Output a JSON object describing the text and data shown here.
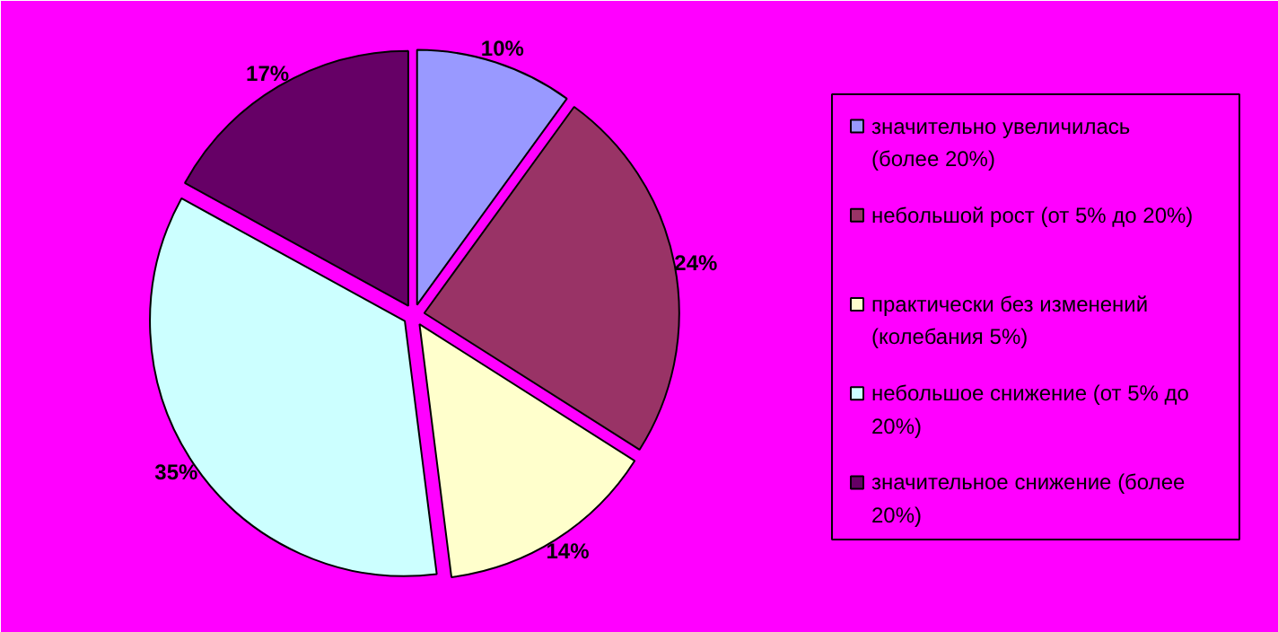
{
  "chart_data": {
    "type": "pie",
    "categories": [
      "значительно увеличилась (более 20%)",
      "небольшой рост (от 5% до 20%)",
      "практически без изменений (колебания 5%)",
      "небольшое снижение (от 5% до 20%)",
      "значительное снижение (более 20%)"
    ],
    "values": [
      10,
      24,
      14,
      35,
      17
    ],
    "colors": [
      "#9999ff",
      "#993366",
      "#ffffcc",
      "#ccffff",
      "#660066"
    ],
    "value_labels": [
      "10%",
      "24%",
      "14%",
      "35%",
      "17%"
    ],
    "legend": "right"
  }
}
